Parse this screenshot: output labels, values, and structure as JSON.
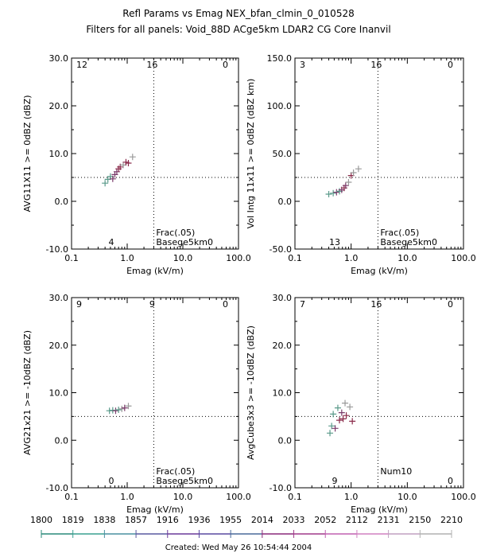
{
  "title_line1": "Refl Params vs Emag    NEX_bfan_clmin_0_010528",
  "title_line2": "Filters for all panels:  Void_88D ACge5km LDAR2 CG Core Inanvil",
  "footer": "Created: Wed May 26 10:54:44 2004",
  "chart_data": [
    {
      "type": "scatter",
      "xlabel": "Emag (kV/m)",
      "ylabel": "AVG11X11 >= 0dBZ (dBZ)",
      "xscale": "log",
      "xlim": [
        0.1,
        100.0
      ],
      "ylim": [
        -10.0,
        30.0
      ],
      "xticks": [
        "0.1",
        "1.0",
        "10.0",
        "100.0"
      ],
      "yticks": [
        "-10.0",
        "0.0",
        "10.0",
        "20.0",
        "30.0"
      ],
      "vline_x": 3.0,
      "hline_y": 5.0,
      "corner_counts": {
        "top_left": "12",
        "top_mid": "16",
        "top_right": "0",
        "bottom_mid": "4"
      },
      "annotations": [
        "Frac(.05)",
        "Basege5km0"
      ],
      "points": [
        {
          "x": 0.4,
          "y": 3.8,
          "color": "#5a9a8a"
        },
        {
          "x": 0.45,
          "y": 4.6,
          "color": "#5a9a8a"
        },
        {
          "x": 0.5,
          "y": 5.2,
          "color": "#5a9a8a"
        },
        {
          "x": 0.55,
          "y": 4.7,
          "color": "#7a3a6a"
        },
        {
          "x": 0.6,
          "y": 5.6,
          "color": "#7a3a6a"
        },
        {
          "x": 0.65,
          "y": 6.2,
          "color": "#7a3a6a"
        },
        {
          "x": 0.7,
          "y": 6.8,
          "color": "#8a2a4a"
        },
        {
          "x": 0.75,
          "y": 7.2,
          "color": "#8a2a4a"
        },
        {
          "x": 0.85,
          "y": 7.6,
          "color": "#9a9a9a"
        },
        {
          "x": 0.95,
          "y": 8.2,
          "color": "#8a2a4a"
        },
        {
          "x": 1.05,
          "y": 8.0,
          "color": "#8a2a4a"
        },
        {
          "x": 1.25,
          "y": 9.3,
          "color": "#9a9a9a"
        }
      ]
    },
    {
      "type": "scatter",
      "xlabel": "Emag (kV/m)",
      "ylabel": "Vol Intg 11x11 >= 0dBZ (dBZ km)",
      "xscale": "log",
      "xlim": [
        0.1,
        100.0
      ],
      "ylim": [
        -50.0,
        150.0
      ],
      "xticks": [
        "0.1",
        "1.0",
        "10.0",
        "100.0"
      ],
      "yticks": [
        "-50.0",
        "0.0",
        "50.0",
        "100.0",
        "150.0"
      ],
      "vline_x": 3.0,
      "hline_y": 25.0,
      "corner_counts": {
        "top_left": "3",
        "top_mid": "16",
        "top_right": "0",
        "bottom_mid": "13"
      },
      "annotations": [
        "Frac(.05)",
        "Basege5km0"
      ],
      "points": [
        {
          "x": 0.4,
          "y": 7.5,
          "color": "#5a9a8a"
        },
        {
          "x": 0.48,
          "y": 8.5,
          "color": "#5a9a8a"
        },
        {
          "x": 0.55,
          "y": 9.5,
          "color": "#7a3a6a"
        },
        {
          "x": 0.62,
          "y": 10.5,
          "color": "#5a9a8a"
        },
        {
          "x": 0.68,
          "y": 12.0,
          "color": "#7a3a6a"
        },
        {
          "x": 0.75,
          "y": 14.0,
          "color": "#8a2a4a"
        },
        {
          "x": 0.8,
          "y": 16.5,
          "color": "#7a3a6a"
        },
        {
          "x": 0.9,
          "y": 20.0,
          "color": "#9a9a9a"
        },
        {
          "x": 1.0,
          "y": 27.0,
          "color": "#8a2a4a"
        },
        {
          "x": 1.1,
          "y": 30.0,
          "color": "#9a9a9a"
        },
        {
          "x": 1.35,
          "y": 34.0,
          "color": "#9a9a9a"
        }
      ]
    },
    {
      "type": "scatter",
      "xlabel": "Emag (kV/m)",
      "ylabel": "AVG21x21 >= -10dBZ (dBZ)",
      "xscale": "log",
      "xlim": [
        0.1,
        100.0
      ],
      "ylim": [
        -10.0,
        30.0
      ],
      "xticks": [
        "0.1",
        "1.0",
        "10.0",
        "100.0"
      ],
      "yticks": [
        "-10.0",
        "0.0",
        "10.0",
        "20.0",
        "30.0"
      ],
      "vline_x": 3.0,
      "hline_y": 5.0,
      "corner_counts": {
        "top_left": "9",
        "top_mid": "9",
        "top_right": "0",
        "bottom_mid": "0"
      },
      "annotations": [
        "Frac(.05)",
        "Basege5km0"
      ],
      "points": [
        {
          "x": 0.48,
          "y": 6.2,
          "color": "#5a9a8a"
        },
        {
          "x": 0.55,
          "y": 6.3,
          "color": "#5a9a8a"
        },
        {
          "x": 0.62,
          "y": 6.2,
          "color": "#7a3a6a"
        },
        {
          "x": 0.7,
          "y": 6.4,
          "color": "#5a9a8a"
        },
        {
          "x": 0.8,
          "y": 6.6,
          "color": "#9a9a9a"
        },
        {
          "x": 0.9,
          "y": 6.8,
          "color": "#7a3a6a"
        },
        {
          "x": 1.05,
          "y": 7.2,
          "color": "#9a9a9a"
        }
      ]
    },
    {
      "type": "scatter",
      "xlabel": "Emag (kV/m)",
      "ylabel": "AvgCube3x3 >= -10dBZ (dBZ)",
      "xscale": "log",
      "xlim": [
        0.1,
        100.0
      ],
      "ylim": [
        -10.0,
        30.0
      ],
      "xticks": [
        "0.1",
        "1.0",
        "10.0",
        "100.0"
      ],
      "yticks": [
        "-10.0",
        "0.0",
        "10.0",
        "20.0",
        "30.0"
      ],
      "vline_x": 3.0,
      "hline_y": 5.0,
      "corner_counts": {
        "top_left": "7",
        "top_mid": "16",
        "top_right": "0",
        "bottom_mid": "9",
        "bottom_right": "0"
      },
      "annotations": [
        "Num10"
      ],
      "points": [
        {
          "x": 0.42,
          "y": 1.5,
          "color": "#5a9a8a"
        },
        {
          "x": 0.45,
          "y": 3.0,
          "color": "#5a9a8a"
        },
        {
          "x": 0.48,
          "y": 5.5,
          "color": "#5a9a8a"
        },
        {
          "x": 0.52,
          "y": 2.5,
          "color": "#7a3a6a"
        },
        {
          "x": 0.58,
          "y": 6.8,
          "color": "#5a9a8a"
        },
        {
          "x": 0.62,
          "y": 4.2,
          "color": "#8a2a4a"
        },
        {
          "x": 0.68,
          "y": 5.8,
          "color": "#7a3a6a"
        },
        {
          "x": 0.72,
          "y": 4.5,
          "color": "#8a2a4a"
        },
        {
          "x": 0.78,
          "y": 7.8,
          "color": "#9a9a9a"
        },
        {
          "x": 0.82,
          "y": 5.2,
          "color": "#8a2a4a"
        },
        {
          "x": 0.95,
          "y": 7.0,
          "color": "#9a9a9a"
        },
        {
          "x": 1.05,
          "y": 4.0,
          "color": "#8a2a4a"
        }
      ]
    }
  ],
  "color_bar": {
    "labels": [
      "1800",
      "1819",
      "1838",
      "1857",
      "1916",
      "1936",
      "1955",
      "2014",
      "2033",
      "2052",
      "2112",
      "2131",
      "2150",
      "2210"
    ],
    "colors": [
      "#2a8a7a",
      "#3aa090",
      "#4a90a0",
      "#5a5aa0",
      "#6a3a9a",
      "#5a4aa0",
      "#4a6a9a",
      "#8a2a7a",
      "#a03a8a",
      "#c060b0",
      "#d080c0",
      "#c0a0c0",
      "#b0b0b0"
    ]
  }
}
